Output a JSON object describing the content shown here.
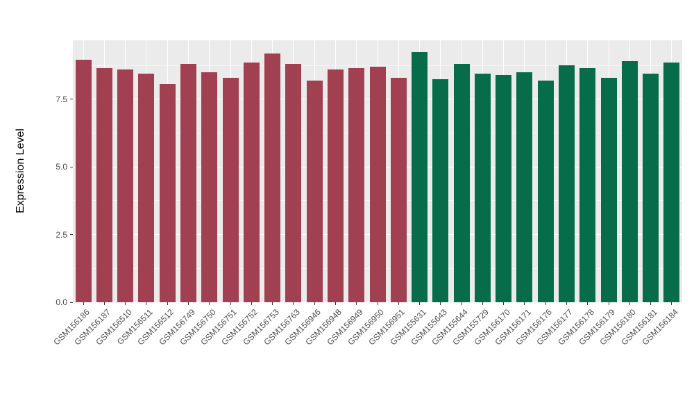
{
  "chart_data": {
    "type": "bar",
    "title": "",
    "xlabel": "",
    "ylabel": "Expression Level",
    "ylim": [
      0,
      9.68
    ],
    "grid": "on",
    "legend": "none",
    "panel_background": "#EBEBEB",
    "group_colors": {
      "group1": "#A04050",
      "group2": "#066C49"
    },
    "yticks": [
      {
        "value": 0.0,
        "label": "0.0"
      },
      {
        "value": 2.5,
        "label": "2.5"
      },
      {
        "value": 5.0,
        "label": "5.0"
      },
      {
        "value": 7.5,
        "label": "7.5"
      }
    ],
    "yticks_minor": [
      1.25,
      3.75,
      6.25,
      8.75
    ],
    "bars": [
      {
        "label": "GSM156186",
        "value": 8.95,
        "group": "group1"
      },
      {
        "label": "GSM156187",
        "value": 8.65,
        "group": "group1"
      },
      {
        "label": "GSM156510",
        "value": 8.6,
        "group": "group1"
      },
      {
        "label": "GSM156511",
        "value": 8.45,
        "group": "group1"
      },
      {
        "label": "GSM156512",
        "value": 8.05,
        "group": "group1"
      },
      {
        "label": "GSM156749",
        "value": 8.8,
        "group": "group1"
      },
      {
        "label": "GSM156750",
        "value": 8.5,
        "group": "group1"
      },
      {
        "label": "GSM156751",
        "value": 8.3,
        "group": "group1"
      },
      {
        "label": "GSM156752",
        "value": 8.85,
        "group": "group1"
      },
      {
        "label": "GSM156753",
        "value": 9.2,
        "group": "group1"
      },
      {
        "label": "GSM156763",
        "value": 8.8,
        "group": "group1"
      },
      {
        "label": "GSM156946",
        "value": 8.2,
        "group": "group1"
      },
      {
        "label": "GSM156948",
        "value": 8.6,
        "group": "group1"
      },
      {
        "label": "GSM156949",
        "value": 8.65,
        "group": "group1"
      },
      {
        "label": "GSM156950",
        "value": 8.7,
        "group": "group1"
      },
      {
        "label": "GSM156951",
        "value": 8.3,
        "group": "group1"
      },
      {
        "label": "GSM155631",
        "value": 9.25,
        "group": "group2"
      },
      {
        "label": "GSM155643",
        "value": 8.25,
        "group": "group2"
      },
      {
        "label": "GSM155644",
        "value": 8.8,
        "group": "group2"
      },
      {
        "label": "GSM155729",
        "value": 8.45,
        "group": "group2"
      },
      {
        "label": "GSM156170",
        "value": 8.4,
        "group": "group2"
      },
      {
        "label": "GSM156171",
        "value": 8.5,
        "group": "group2"
      },
      {
        "label": "GSM156176",
        "value": 8.2,
        "group": "group2"
      },
      {
        "label": "GSM156177",
        "value": 8.75,
        "group": "group2"
      },
      {
        "label": "GSM156178",
        "value": 8.65,
        "group": "group2"
      },
      {
        "label": "GSM156179",
        "value": 8.3,
        "group": "group2"
      },
      {
        "label": "GSM156180",
        "value": 8.9,
        "group": "group2"
      },
      {
        "label": "GSM156181",
        "value": 8.45,
        "group": "group2"
      },
      {
        "label": "GSM156184",
        "value": 8.85,
        "group": "group2"
      }
    ]
  }
}
